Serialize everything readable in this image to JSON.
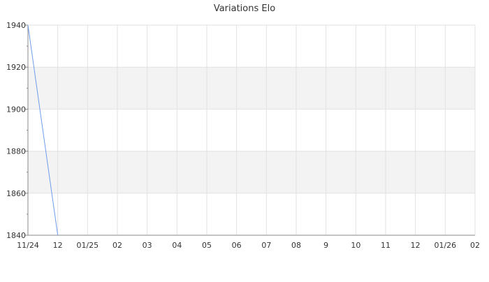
{
  "chart_data": {
    "type": "line",
    "title": "Variations Elo",
    "xlabel": "",
    "ylabel": "",
    "x_tick_labels": [
      "11/24",
      "12",
      "01/25",
      "02",
      "03",
      "04",
      "05",
      "06",
      "07",
      "08",
      "9",
      "10",
      "11",
      "12",
      "01/26",
      "02"
    ],
    "yticks": [
      1840,
      1860,
      1880,
      1900,
      1920,
      1940
    ],
    "ylim": [
      1840,
      1940
    ],
    "grid": true,
    "alternate_bands": true,
    "series": [
      {
        "x": [
          "11/24",
          "12"
        ],
        "values": [
          1940,
          1840
        ]
      }
    ],
    "colors": {
      "line": "#6d9eeb",
      "band": "#f3f3f3",
      "grid": "#e2e2e2",
      "axis": "#888888"
    }
  }
}
